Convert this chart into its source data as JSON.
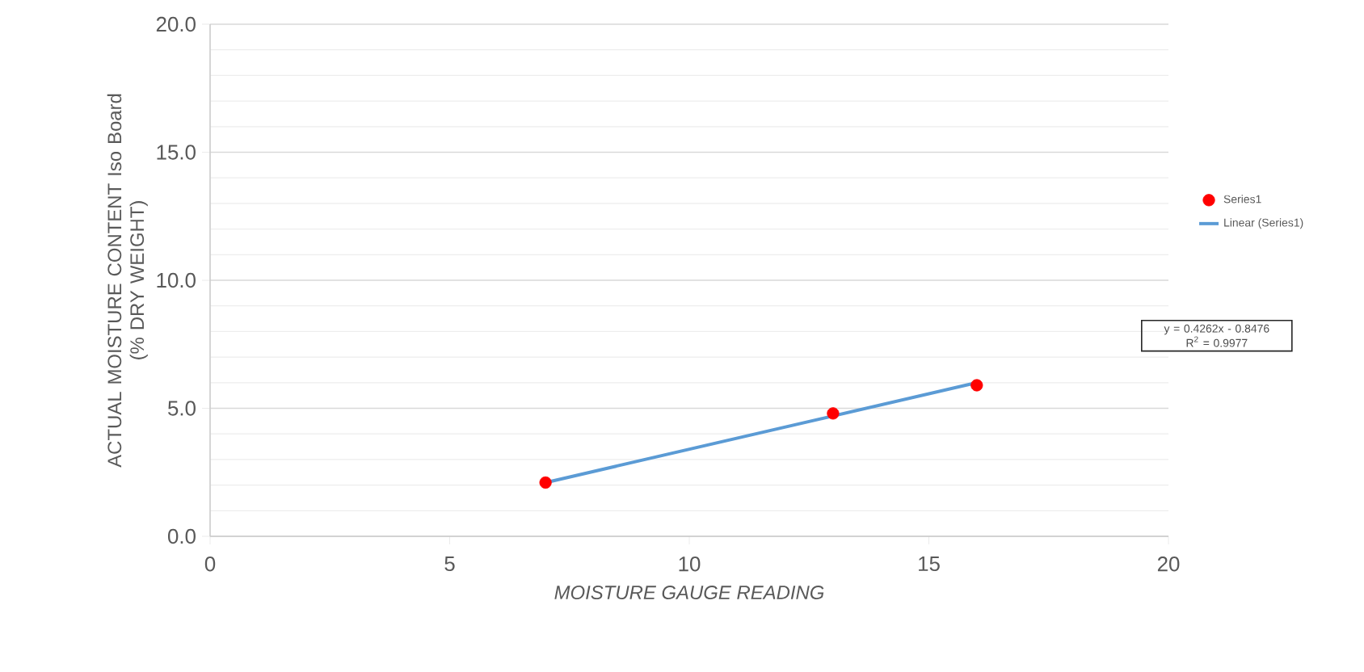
{
  "chart_data": {
    "type": "scatter",
    "xlabel": "MOISTURE GAUGE READING",
    "ylabel": "ACTUAL MOISTURE CONTENT Iso Board\n(% DRY WEIGHT)",
    "series": [
      {
        "name": "Series1",
        "color": "#ff0000",
        "marker": "circle",
        "x": [
          7,
          13,
          16
        ],
        "values": [
          2.1,
          4.8,
          5.9
        ]
      },
      {
        "name": "Linear (Series1)",
        "type": "line",
        "color": "#5b9bd5",
        "marker": "none",
        "line_style": "solid",
        "x": [
          7,
          16
        ],
        "values": [
          2.1,
          6.0
        ]
      }
    ],
    "annotations": [
      "y = 0.4262x - 0.8476\nR$^{2}$ = 0.9977"
    ],
    "xlim": [
      0,
      20
    ],
    "xticks": [
      0,
      5,
      10,
      15,
      20
    ],
    "ylim": [
      0,
      20
    ],
    "yticks": [
      {
        "value": 0,
        "label": "0.0"
      },
      {
        "value": 5,
        "label": "5.0"
      },
      {
        "value": 10,
        "label": "10.0"
      },
      {
        "value": 15,
        "label": "15.0"
      },
      {
        "value": 20,
        "label": "20.0"
      }
    ],
    "grid": "y",
    "legend": "right"
  }
}
